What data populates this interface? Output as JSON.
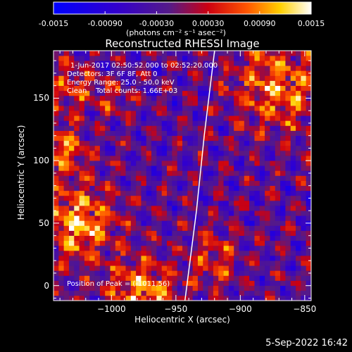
{
  "colorbar": {
    "min": -0.0015,
    "max": 0.0015,
    "ticks": [
      "-0.0015",
      "-0.00090",
      "-0.00030",
      "0.00030",
      "0.00090",
      "0.0015"
    ],
    "unit_label": "(photons cm⁻² s⁻¹ asec⁻²)",
    "colormap": "blue-purple-red-yellow-white"
  },
  "header": {
    "title": "Reconstructed RHESSI Image"
  },
  "overlay": {
    "line1": "1-Jun-2017 02:50:52.000 to 02:52:20.000",
    "line2": "Detectors: 3F 6F 8F, Att 0",
    "line3": "Energy Range: 25.0 - 50.0 keV",
    "line4": "Clean    Total counts: 1.66E+03",
    "peak": "Position of Peak = (-1011,56)"
  },
  "footer": {
    "timestamp": "5-Sep-2022 16:42"
  },
  "chart_data": {
    "type": "heatmap",
    "title": "Reconstructed RHESSI Image",
    "xlabel": "Heliocentric X (arcsec)",
    "ylabel": "Heliocentric Y (arcsec)",
    "xlim": [
      -1045,
      -845
    ],
    "ylim": [
      -12,
      188
    ],
    "x_ticks": [
      -1000,
      -950,
      -900,
      -850
    ],
    "x_tick_labels": [
      "−1000",
      "−950",
      "−900",
      "−850"
    ],
    "y_ticks": [
      0,
      50,
      100,
      150
    ],
    "y_tick_labels": [
      "0",
      "50",
      "100",
      "150"
    ],
    "limb_line": [
      [
        -943,
        -12
      ],
      [
        -934,
        60
      ],
      [
        -928,
        120
      ],
      [
        -920,
        188
      ]
    ],
    "peak_position": [
      -1011,
      56
    ],
    "bright_regions": [
      {
        "x": -1025,
        "y": 50,
        "radius": 20,
        "level": 1.0
      },
      {
        "x": -1040,
        "y": 110,
        "radius": 15,
        "level": 0.8
      },
      {
        "x": -1030,
        "y": 160,
        "radius": 12,
        "level": 0.6
      },
      {
        "x": -975,
        "y": -5,
        "radius": 18,
        "level": 0.9
      },
      {
        "x": -870,
        "y": 160,
        "radius": 25,
        "level": 0.8
      },
      {
        "x": -920,
        "y": 20,
        "radius": 15,
        "level": 0.5
      },
      {
        "x": -1000,
        "y": 150,
        "radius": 10,
        "level": 0.4
      }
    ]
  }
}
